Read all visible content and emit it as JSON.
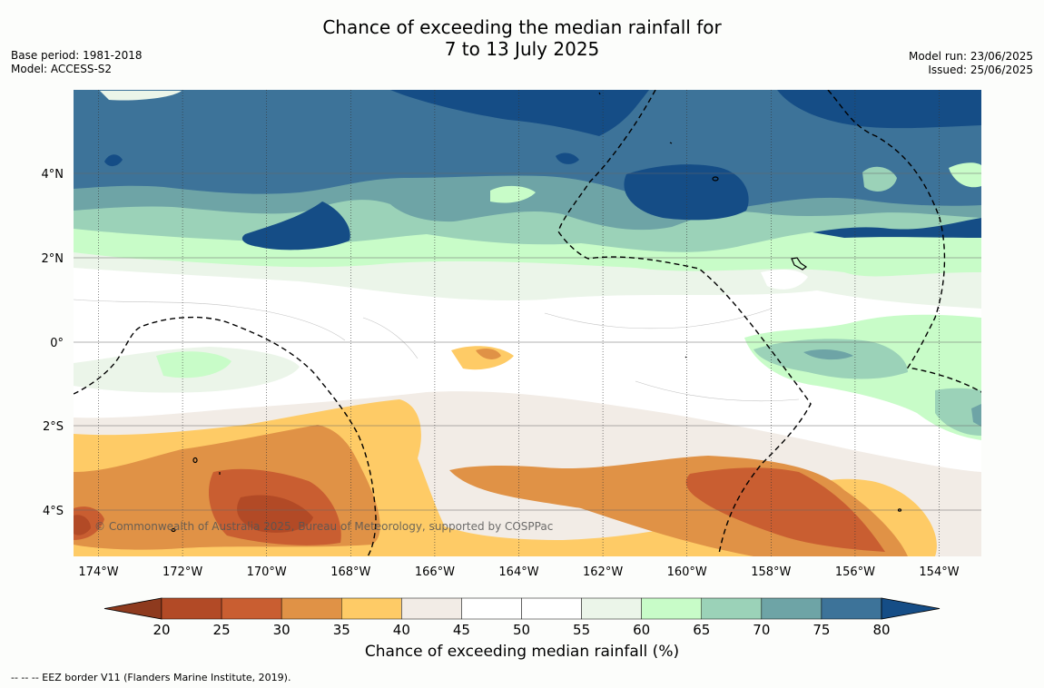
{
  "title": {
    "line1": "Chance of exceeding the median rainfall for",
    "line2": "7 to 13 July 2025"
  },
  "meta_left": {
    "base_period": "Base period: 1981-2018",
    "model": "Model: ACCESS-S2"
  },
  "meta_right": {
    "model_run": "Model run: 23/06/2025",
    "issued": "Issued: 25/06/2025"
  },
  "map": {
    "longitude_labels": [
      "174°W",
      "172°W",
      "170°W",
      "168°W",
      "166°W",
      "164°W",
      "162°W",
      "160°W",
      "158°W",
      "156°W",
      "154°W"
    ],
    "latitude_labels": [
      "4°N",
      "2°N",
      "0°",
      "2°S",
      "4°S"
    ],
    "copyright": "© Commonwealth of Australia 2025, Bureau of Meteorology, supported by COSPPac"
  },
  "colorbar": {
    "ticks": [
      "20",
      "25",
      "30",
      "35",
      "40",
      "45",
      "50",
      "55",
      "60",
      "65",
      "70",
      "75",
      "80"
    ],
    "colors": [
      "#b24a26",
      "#c95e31",
      "#e09246",
      "#fecb66",
      "#f2ece6",
      "#ffffff",
      "#ffffff",
      "#ebf5e9",
      "#c8fcc8",
      "#9bd2b8",
      "#6ea4a6",
      "#3d7399"
    ],
    "under_color": "#8e3a1e",
    "over_color": "#154d86",
    "title": "Chance of exceeding median rainfall (%)"
  },
  "footnote": "--  --  -- EEZ border V11 (Flanders Marine Institute, 2019)."
}
